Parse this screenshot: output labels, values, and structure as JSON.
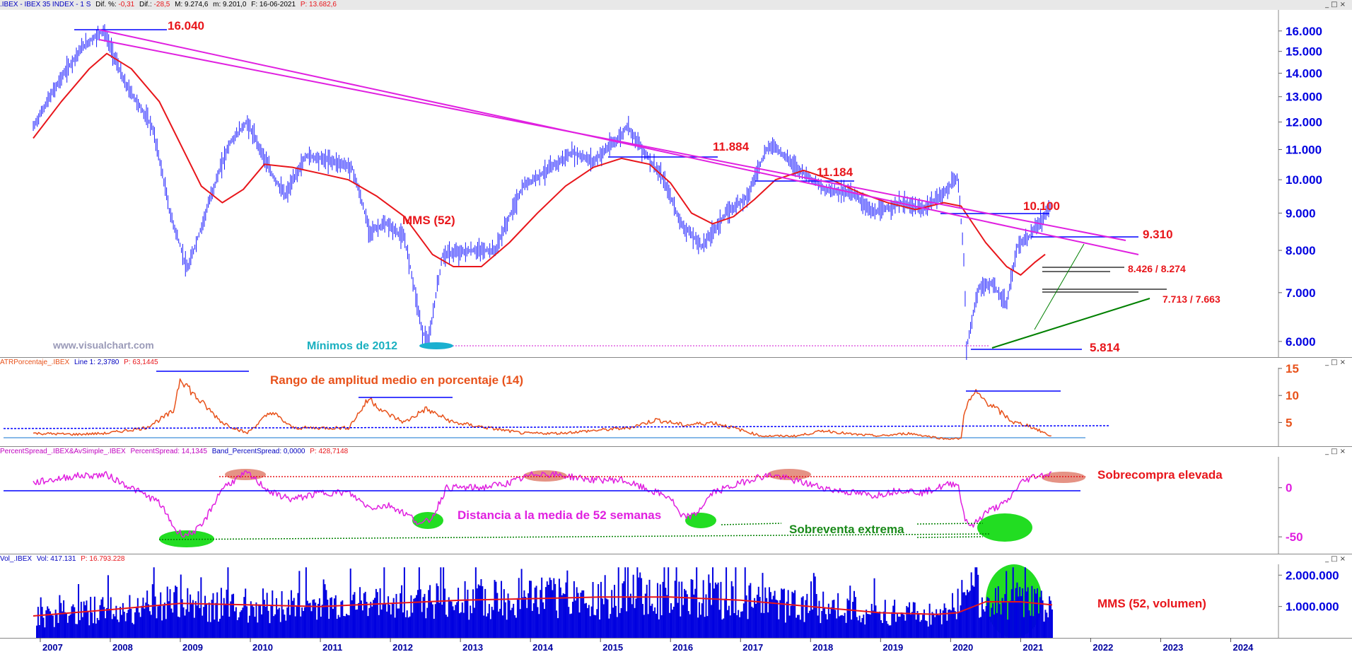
{
  "headers": {
    "main": {
      "symbol": ".IBEX - IBEX 35 INDEX -  1 S",
      "dif_pct_label": "Dif. %:",
      "dif_pct_value": "-0,31",
      "dif_label": "Dif.:",
      "dif_value": "-28,5",
      "max_label": "M: 9.274,6",
      "min_label": "m: 9.201,0",
      "date_label": "F: 16-06-2021",
      "price_label": "P: 13.682,6"
    },
    "atr": {
      "name": "ATRPorcentaje_.IBEX",
      "line": "Line 1: 2,3780",
      "price": "P: 63,1445"
    },
    "spread": {
      "name": "PercentSpread_.IBEX&AvSimple_.IBEX",
      "value": "PercentSpread: 14,1345",
      "band": "Band_PercentSpread: 0,0000",
      "price": "P: 428,7148"
    },
    "volume": {
      "name": "Vol_.IBEX",
      "vol": "Vol: 417.131",
      "price": "P: 16.793.228"
    }
  },
  "window_controls": {
    "minimize": "_",
    "maximize": "□",
    "close": "×"
  },
  "watermark": "www.visualchart.com",
  "annotations": {
    "high_2007": "16.040",
    "high_2015": "11.884",
    "high_2017": "11.184",
    "high_2020": "10.100",
    "level_9310": "9.310",
    "level_8426": "8.426 / 8.274",
    "level_7713": "7.713 / 7.663",
    "low_2020": "5.814",
    "mms52": "MMS (52)",
    "min_2012": "Mínimos de 2012",
    "atr_title": "Rango de amplitud medio en porcentaje (14)",
    "spread_title": "Distancia a la media de 52 semanas",
    "overbought": "Sobrecompra elevada",
    "oversold": "Sobreventa extrema",
    "vol_mms": "MMS (52, volumen)"
  },
  "colors": {
    "price_bars": "#1a1aff",
    "mma": "#e8161b",
    "resistance": "#e020e0",
    "support": "#008000",
    "atr_line": "#e8521b",
    "spread_line": "#e020e0",
    "volume": "#0000e0",
    "annotation_red": "#e8161b",
    "oversold_fill": "#22dd22",
    "overbought_fill": "#e08070"
  },
  "chart_data": [
    {
      "type": "line",
      "title": "IBEX 35 INDEX",
      "x_axis": [
        "2007",
        "2008",
        "2009",
        "2010",
        "2011",
        "2012",
        "2013",
        "2014",
        "2015",
        "2016",
        "2017",
        "2018",
        "2019",
        "2020",
        "2021",
        "2022",
        "2023",
        "2024"
      ],
      "y_ticks": [
        "16.000",
        "15.000",
        "14.000",
        "13.000",
        "12.000",
        "11.000",
        "10.000",
        "9.000",
        "8.000",
        "7.000",
        "6.000"
      ],
      "ylim": [
        5800,
        16500
      ],
      "scale": "log",
      "series": [
        {
          "name": "price",
          "points": [
            [
              2006.9,
              11800
            ],
            [
              2007.3,
              13800
            ],
            [
              2007.6,
              15200
            ],
            [
              2007.9,
              16040
            ],
            [
              2008.2,
              13600
            ],
            [
              2008.6,
              11800
            ],
            [
              2008.85,
              9000
            ],
            [
              2009.1,
              7500
            ],
            [
              2009.3,
              8600
            ],
            [
              2009.7,
              11200
            ],
            [
              2009.95,
              12000
            ],
            [
              2010.3,
              10200
            ],
            [
              2010.5,
              9500
            ],
            [
              2010.8,
              10800
            ],
            [
              2011.2,
              10600
            ],
            [
              2011.45,
              10400
            ],
            [
              2011.7,
              8500
            ],
            [
              2011.95,
              8700
            ],
            [
              2012.2,
              8300
            ],
            [
              2012.45,
              6200
            ],
            [
              2012.55,
              6000
            ],
            [
              2012.75,
              7900
            ],
            [
              2013.2,
              8000
            ],
            [
              2013.5,
              8000
            ],
            [
              2013.9,
              9800
            ],
            [
              2014.3,
              10400
            ],
            [
              2014.6,
              10900
            ],
            [
              2014.9,
              10600
            ],
            [
              2015.3,
              11500
            ],
            [
              2015.38,
              11884
            ],
            [
              2015.6,
              11000
            ],
            [
              2015.9,
              10000
            ],
            [
              2016.15,
              8700
            ],
            [
              2016.45,
              8100
            ],
            [
              2016.8,
              9000
            ],
            [
              2017.1,
              9500
            ],
            [
              2017.35,
              10900
            ],
            [
              2017.45,
              11184
            ],
            [
              2017.8,
              10400
            ],
            [
              2018.2,
              9700
            ],
            [
              2018.6,
              9600
            ],
            [
              2018.9,
              9000
            ],
            [
              2019.3,
              9300
            ],
            [
              2019.6,
              9100
            ],
            [
              2019.8,
              9400
            ],
            [
              2019.95,
              9700
            ],
            [
              2020.1,
              10100
            ],
            [
              2020.2,
              7500
            ],
            [
              2020.22,
              5814
            ],
            [
              2020.4,
              7100
            ],
            [
              2020.6,
              7200
            ],
            [
              2020.8,
              6700
            ],
            [
              2020.95,
              8100
            ],
            [
              2021.1,
              8300
            ],
            [
              2021.3,
              8800
            ],
            [
              2021.45,
              9274
            ]
          ]
        },
        {
          "name": "MMS (52)",
          "points": [
            [
              2006.9,
              11400
            ],
            [
              2007.3,
              12800
            ],
            [
              2007.7,
              14200
            ],
            [
              2007.95,
              14900
            ],
            [
              2008.3,
              14200
            ],
            [
              2008.7,
              12800
            ],
            [
              2009.0,
              11200
            ],
            [
              2009.3,
              9800
            ],
            [
              2009.6,
              9300
            ],
            [
              2009.9,
              9700
            ],
            [
              2010.2,
              10500
            ],
            [
              2010.6,
              10400
            ],
            [
              2011.0,
              10200
            ],
            [
              2011.4,
              10000
            ],
            [
              2011.8,
              9500
            ],
            [
              2012.2,
              8900
            ],
            [
              2012.6,
              7900
            ],
            [
              2012.9,
              7600
            ],
            [
              2013.3,
              7600
            ],
            [
              2013.7,
              8200
            ],
            [
              2014.1,
              9000
            ],
            [
              2014.5,
              9800
            ],
            [
              2014.9,
              10400
            ],
            [
              2015.3,
              10700
            ],
            [
              2015.7,
              10500
            ],
            [
              2016.0,
              9900
            ],
            [
              2016.3,
              9000
            ],
            [
              2016.6,
              8700
            ],
            [
              2016.9,
              8900
            ],
            [
              2017.2,
              9400
            ],
            [
              2017.5,
              10000
            ],
            [
              2017.9,
              10300
            ],
            [
              2018.3,
              10000
            ],
            [
              2018.7,
              9600
            ],
            [
              2019.1,
              9300
            ],
            [
              2019.5,
              9100
            ],
            [
              2019.9,
              9300
            ],
            [
              2020.15,
              9200
            ],
            [
              2020.5,
              8200
            ],
            [
              2020.8,
              7600
            ],
            [
              2021.0,
              7400
            ],
            [
              2021.2,
              7700
            ],
            [
              2021.35,
              7900
            ]
          ]
        }
      ]
    },
    {
      "type": "line",
      "title": "ATRPorcentaje_.IBEX",
      "y_ticks": [
        "15",
        "10",
        "5"
      ],
      "ylim": [
        1,
        15
      ],
      "series": [
        {
          "name": "ATR %",
          "points": [
            [
              2006.9,
              3
            ],
            [
              2007.5,
              2.8
            ],
            [
              2007.95,
              3
            ],
            [
              2008.5,
              4
            ],
            [
              2008.9,
              7
            ],
            [
              2009.0,
              13.5
            ],
            [
              2009.2,
              10
            ],
            [
              2009.6,
              5
            ],
            [
              2009.95,
              3
            ],
            [
              2010.3,
              7
            ],
            [
              2010.6,
              4
            ],
            [
              2011.0,
              4
            ],
            [
              2011.4,
              4
            ],
            [
              2011.7,
              9.5
            ],
            [
              2011.9,
              7
            ],
            [
              2012.2,
              5
            ],
            [
              2012.5,
              7.5
            ],
            [
              2012.9,
              5
            ],
            [
              2013.4,
              4
            ],
            [
              2013.9,
              3
            ],
            [
              2014.4,
              3
            ],
            [
              2014.9,
              3.5
            ],
            [
              2015.4,
              4
            ],
            [
              2015.8,
              5.5
            ],
            [
              2016.2,
              4.5
            ],
            [
              2016.6,
              5
            ],
            [
              2016.9,
              4
            ],
            [
              2017.3,
              2.5
            ],
            [
              2017.8,
              2.5
            ],
            [
              2018.2,
              3.5
            ],
            [
              2018.6,
              2.8
            ],
            [
              2019.0,
              2.5
            ],
            [
              2019.4,
              3
            ],
            [
              2019.9,
              2
            ],
            [
              2020.15,
              2
            ],
            [
              2020.2,
              7.5
            ],
            [
              2020.35,
              10.5
            ],
            [
              2020.6,
              8
            ],
            [
              2020.9,
              5
            ],
            [
              2021.1,
              4.5
            ],
            [
              2021.45,
              2.4
            ]
          ]
        }
      ]
    },
    {
      "type": "line",
      "title": "PercentSpread_.IBEX&AvSimple_.IBEX",
      "y_ticks": [
        "0",
        "-50"
      ],
      "ylim": [
        -65,
        30
      ],
      "series": [
        {
          "name": "PercentSpread",
          "points": [
            [
              2006.9,
              5
            ],
            [
              2007.5,
              12
            ],
            [
              2007.95,
              13
            ],
            [
              2008.3,
              0
            ],
            [
              2008.7,
              -15
            ],
            [
              2008.95,
              -45
            ],
            [
              2009.1,
              -48
            ],
            [
              2009.3,
              -40
            ],
            [
              2009.6,
              0
            ],
            [
              2009.95,
              15
            ],
            [
              2010.3,
              -5
            ],
            [
              2010.6,
              -12
            ],
            [
              2011.0,
              -5
            ],
            [
              2011.4,
              -5
            ],
            [
              2011.7,
              -20
            ],
            [
              2012.0,
              -18
            ],
            [
              2012.3,
              -30
            ],
            [
              2012.45,
              -38
            ],
            [
              2012.6,
              -30
            ],
            [
              2012.8,
              0
            ],
            [
              2013.3,
              0
            ],
            [
              2013.7,
              5
            ],
            [
              2014.1,
              15
            ],
            [
              2014.5,
              12
            ],
            [
              2014.9,
              8
            ],
            [
              2015.3,
              8
            ],
            [
              2015.6,
              0
            ],
            [
              2016.0,
              -10
            ],
            [
              2016.15,
              -30
            ],
            [
              2016.35,
              -28
            ],
            [
              2016.6,
              -5
            ],
            [
              2016.9,
              2
            ],
            [
              2017.2,
              10
            ],
            [
              2017.45,
              13
            ],
            [
              2017.9,
              5
            ],
            [
              2018.3,
              -2
            ],
            [
              2018.6,
              -5
            ],
            [
              2018.9,
              -8
            ],
            [
              2019.3,
              -2
            ],
            [
              2019.6,
              -5
            ],
            [
              2019.95,
              3
            ],
            [
              2020.1,
              5
            ],
            [
              2020.2,
              -30
            ],
            [
              2020.3,
              -40
            ],
            [
              2020.5,
              -25
            ],
            [
              2020.8,
              -15
            ],
            [
              2021.0,
              5
            ],
            [
              2021.2,
              12
            ],
            [
              2021.45,
              14
            ]
          ]
        }
      ]
    },
    {
      "type": "bar",
      "title": "Vol_.IBEX",
      "y_ticks": [
        "2.000.000",
        "1.000.000"
      ],
      "ylim": [
        0,
        2300000
      ],
      "series": [
        {
          "name": "MMS (52, volumen)",
          "points": [
            [
              2006.9,
              700000
            ],
            [
              2008.0,
              900000
            ],
            [
              2009.0,
              1100000
            ],
            [
              2010.0,
              1050000
            ],
            [
              2011.0,
              1000000
            ],
            [
              2012.0,
              1100000
            ],
            [
              2013.0,
              1200000
            ],
            [
              2014.0,
              1250000
            ],
            [
              2015.0,
              1300000
            ],
            [
              2016.0,
              1300000
            ],
            [
              2017.0,
              1200000
            ],
            [
              2018.0,
              1000000
            ],
            [
              2019.0,
              800000
            ],
            [
              2019.8,
              750000
            ],
            [
              2020.1,
              800000
            ],
            [
              2020.5,
              1150000
            ],
            [
              2021.0,
              1150000
            ],
            [
              2021.45,
              1050000
            ]
          ]
        }
      ]
    }
  ]
}
